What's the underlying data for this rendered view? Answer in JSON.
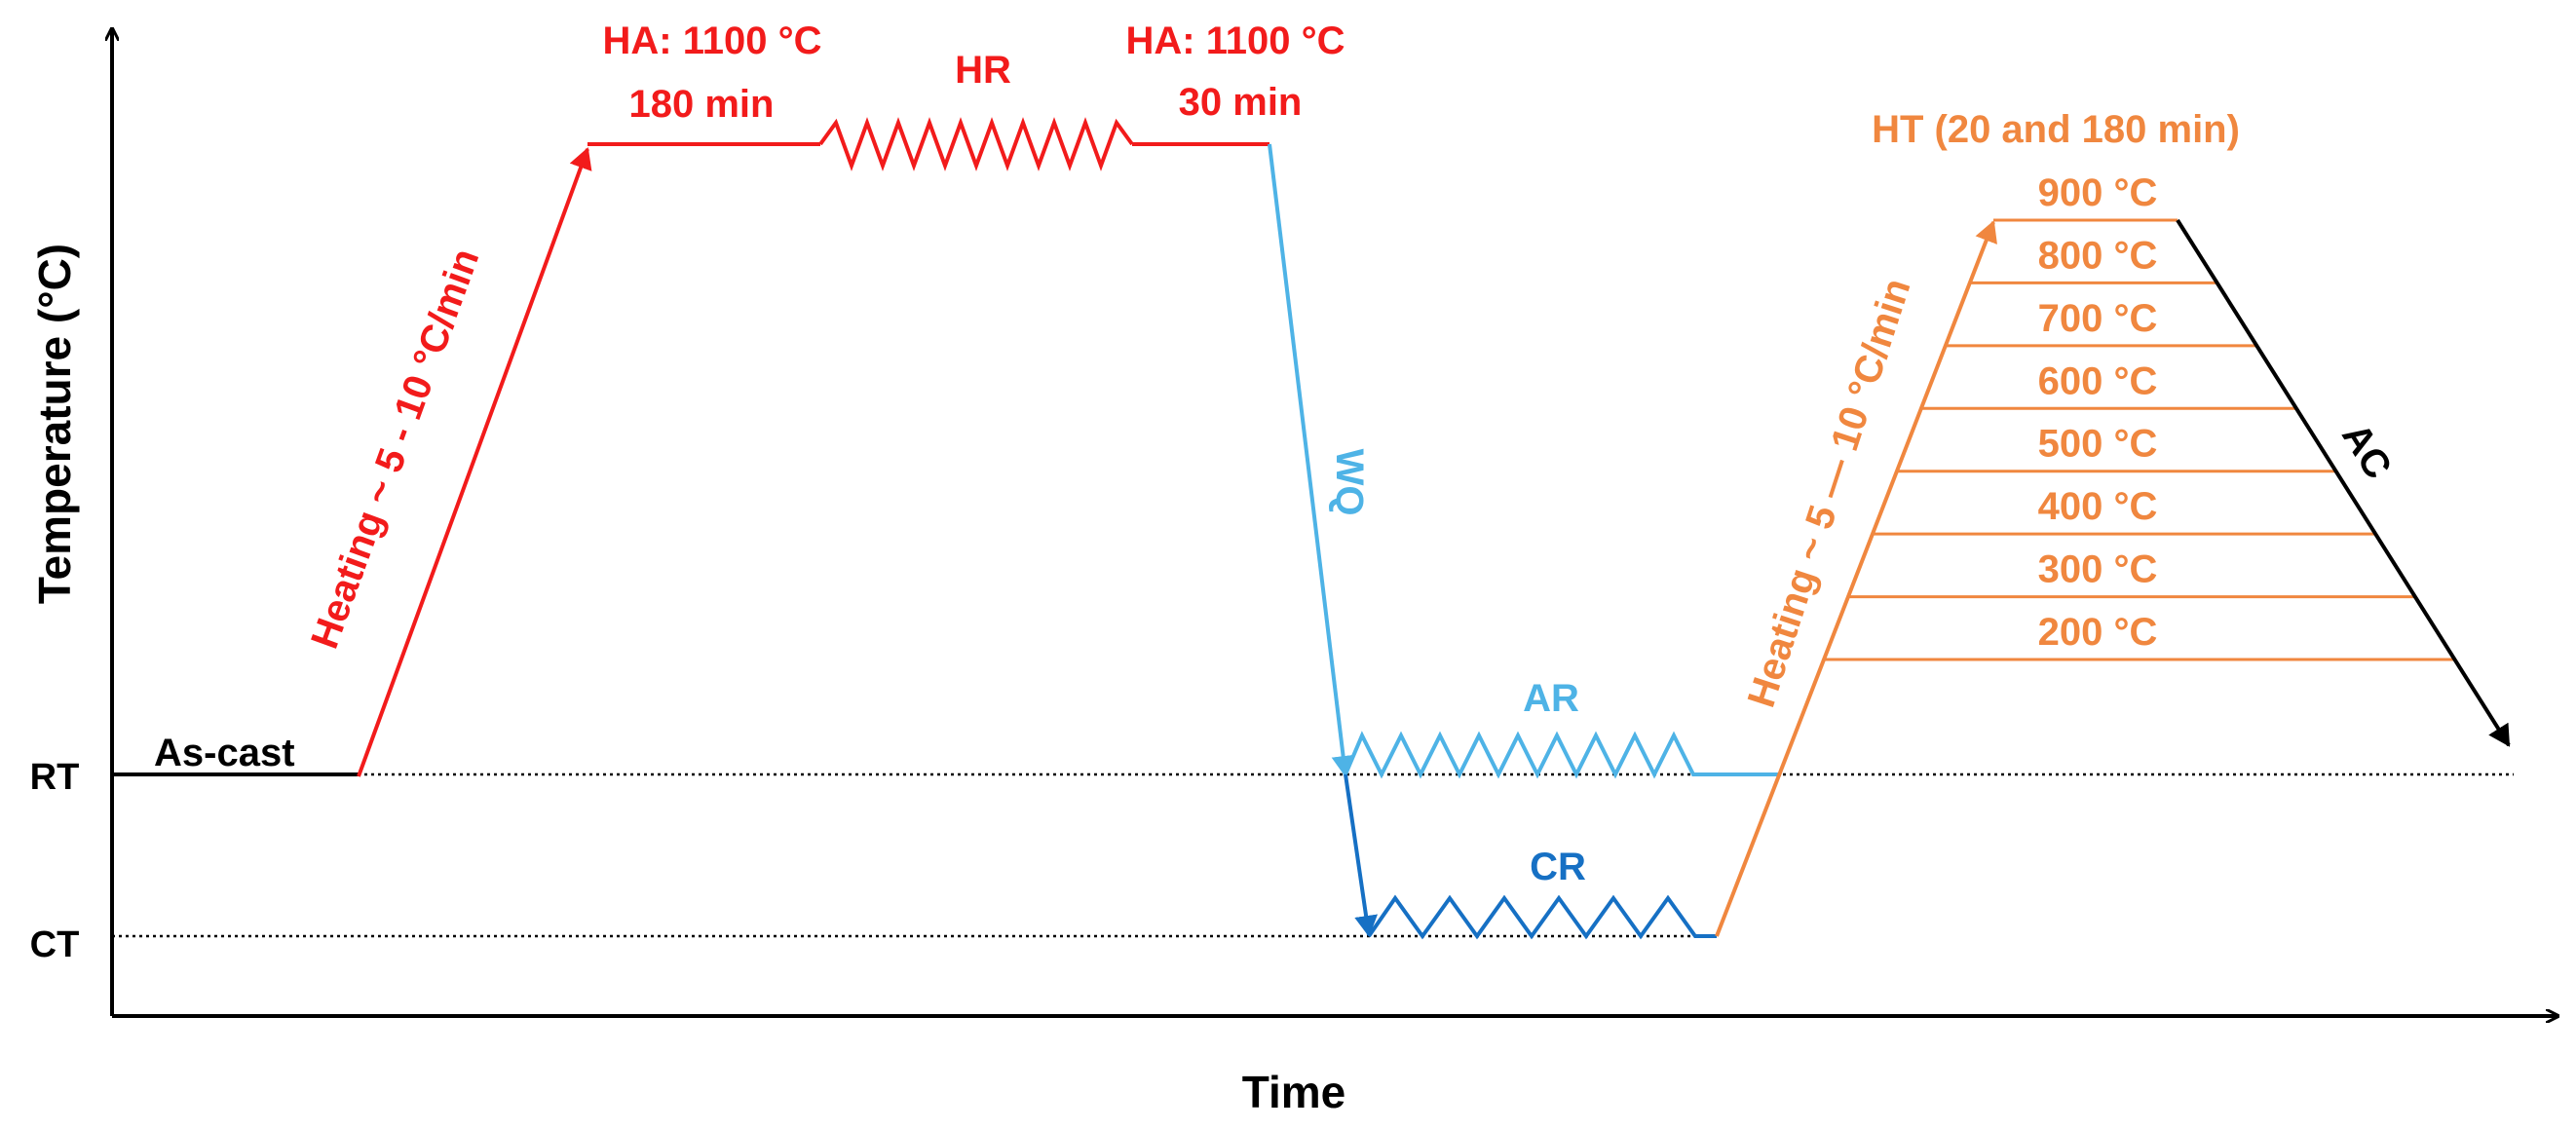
{
  "axes": {
    "x_label": "Time",
    "y_label": "Temperature (°C)",
    "ticks": {
      "rt": "RT",
      "ct": "CT"
    }
  },
  "labels": {
    "as_cast": "As-cast",
    "heating_1": "Heating ~ 5 - 10 °C/min",
    "ha1_line1": "HA: 1100 °C",
    "ha1_line2": "180 min",
    "hr": "HR",
    "ha2_line1": "HA: 1100 °C",
    "ha2_line2": "30 min",
    "wq": "WQ",
    "ar": "AR",
    "cr": "CR",
    "heating_2": "Heating ~ 5 — 10 °C/min",
    "ht": "HT (20 and 180 min)",
    "ac": "AC"
  },
  "temperatures": [
    "900 °C",
    "800 °C",
    "700 °C",
    "600 °C",
    "500 °C",
    "400 °C",
    "300 °C",
    "200 °C"
  ],
  "colors": {
    "red": "#f21b1b",
    "light_blue": "#4eb3e6",
    "dark_blue": "#1670c4",
    "orange": "#f0873f",
    "black": "#000000"
  }
}
